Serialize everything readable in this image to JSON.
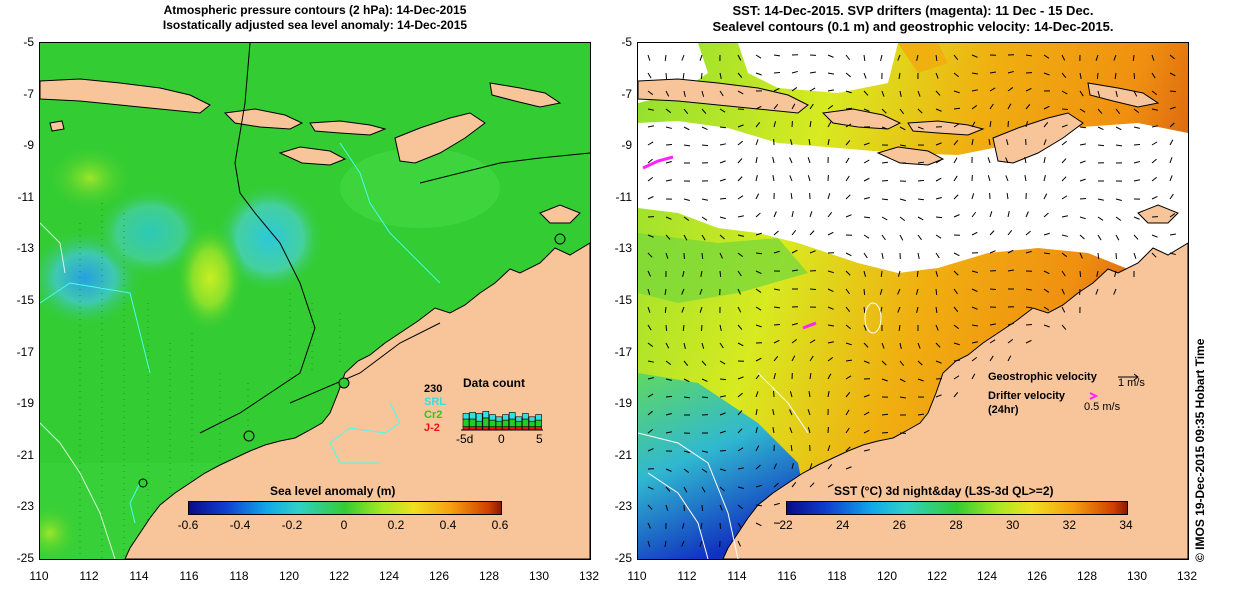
{
  "left_panel": {
    "title_line1": "Atmospheric pressure contours (2 hPa): 14-Dec-2015",
    "title_line2": "Isostatically adjusted sea level anomaly: 14-Dec-2015",
    "colorbar_label": "Sea level anomaly (m)",
    "colorbar_ticks": [
      "-0.6",
      "-0.4",
      "-0.2",
      "0",
      "0.2",
      "0.4",
      "0.6"
    ],
    "data_count": {
      "total": "230",
      "title": "Data count",
      "satellites": [
        {
          "name": "SRL",
          "color": "#33e0e0"
        },
        {
          "name": "Cr2",
          "color": "#22cc22"
        },
        {
          "name": "J-2",
          "color": "#ee1111"
        }
      ],
      "axis_ticks": [
        "-5d",
        "0",
        "5"
      ]
    }
  },
  "right_panel": {
    "title_line1": "SST: 14-Dec-2015. SVP drifters (magenta): 11 Dec - 15 Dec.",
    "title_line2": "Sealevel contours (0.1 m) and geostrophic velocity: 14-Dec-2015.",
    "colorbar_label": "SST (°C) 3d night&day (L3S-3d QL>=2)",
    "colorbar_ticks": [
      "22",
      "24",
      "26",
      "28",
      "30",
      "32",
      "34"
    ],
    "legend": {
      "geo_label": "Geostrophic velocity",
      "geo_value": "1 m/s",
      "drifter_label": "Drifter velocity",
      "drifter_sub": "(24hr)",
      "drifter_value": "0.5 m/s"
    }
  },
  "axes": {
    "lat_ticks": [
      "-5",
      "-7",
      "-9",
      "-11",
      "-13",
      "-15",
      "-17",
      "-19",
      "-21",
      "-23",
      "-25"
    ],
    "lon_ticks": [
      "110",
      "112",
      "114",
      "116",
      "118",
      "120",
      "122",
      "124",
      "126",
      "128",
      "130",
      "132"
    ]
  },
  "credit": "© IMOS 19-Dec-2015 09:35 Hobart Time",
  "colors": {
    "land": "#f8c59b",
    "ocean_green": "#33cc33",
    "no_data": "#ffffff",
    "drifter": "#ff22ff"
  }
}
